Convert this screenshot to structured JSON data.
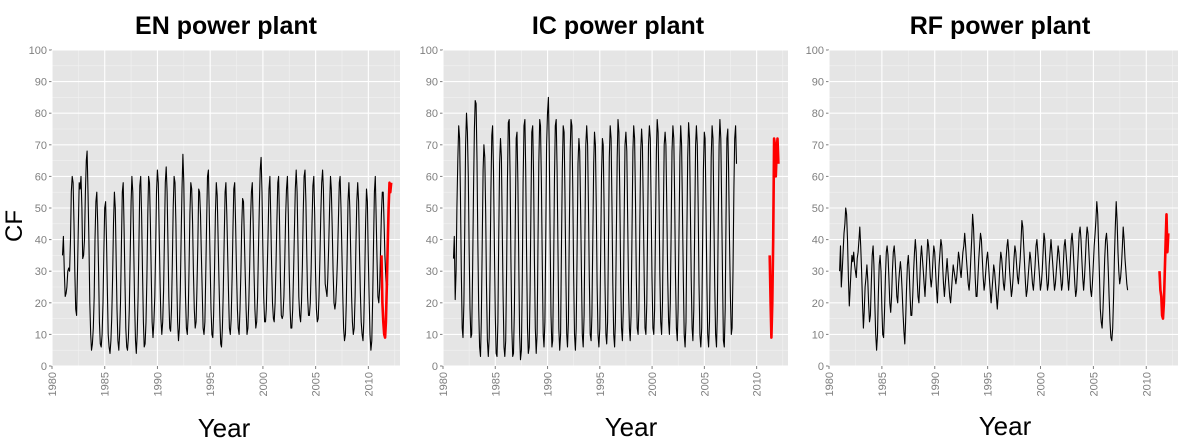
{
  "figure": {
    "ylabel": "CF",
    "xlabel": "Year",
    "colors": {
      "historical": "#000000",
      "recent": "#ff0000",
      "panel": "#e5e5e5",
      "grid": "#ffffff"
    }
  },
  "chart_data": [
    {
      "type": "line",
      "title": "EN power plant",
      "xlabel": "Year",
      "ylabel": "CF",
      "xlim": [
        1980,
        2013
      ],
      "ylim": [
        0,
        100
      ],
      "xticks": [
        "1980",
        "1985",
        "1990",
        "1995",
        "2000",
        "2005",
        "2010"
      ],
      "yticks": [
        "0",
        "10",
        "20",
        "30",
        "40",
        "50",
        "60",
        "70",
        "80",
        "90",
        "100"
      ],
      "grid": true,
      "series": [
        {
          "color": "#000000",
          "x_start": 1981.0,
          "x_step": 0.0833,
          "values": [
            35,
            41,
            30,
            22,
            23,
            25,
            30,
            31,
            30,
            40,
            55,
            60,
            58,
            45,
            30,
            18,
            16,
            30,
            45,
            58,
            56,
            60,
            50,
            34,
            35,
            40,
            55,
            65,
            68,
            55,
            40,
            20,
            10,
            5,
            7,
            12,
            22,
            40,
            52,
            55,
            45,
            30,
            14,
            7,
            6,
            10,
            20,
            35,
            50,
            52,
            40,
            25,
            10,
            6,
            4,
            8,
            15,
            28,
            45,
            55,
            50,
            35,
            18,
            8,
            5,
            10,
            20,
            38,
            55,
            58,
            45,
            28,
            12,
            6,
            5,
            9,
            18,
            35,
            52,
            60,
            55,
            38,
            20,
            8,
            4,
            10,
            22,
            40,
            57,
            60,
            48,
            30,
            14,
            6,
            7,
            14,
            28,
            48,
            60,
            58,
            45,
            28,
            14,
            9,
            14,
            22,
            38,
            55,
            62,
            58,
            42,
            26,
            15,
            10,
            14,
            24,
            40,
            58,
            63,
            55,
            38,
            22,
            12,
            11,
            18,
            32,
            50,
            60,
            58,
            45,
            28,
            14,
            8,
            12,
            24,
            40,
            56,
            67,
            58,
            40,
            22,
            12,
            10,
            16,
            30,
            48,
            58,
            56,
            45,
            30,
            18,
            12,
            14,
            24,
            38,
            56,
            55,
            48,
            36,
            24,
            12,
            10,
            14,
            28,
            45,
            60,
            62,
            50,
            33,
            18,
            10,
            9,
            16,
            30,
            48,
            58,
            54,
            42,
            28,
            16,
            7,
            6,
            12,
            24,
            40,
            55,
            58,
            48,
            35,
            22,
            12,
            10,
            15,
            28,
            44,
            56,
            58,
            45,
            30,
            18,
            12,
            10,
            18,
            30,
            44,
            53,
            52,
            40,
            28,
            18,
            10,
            12,
            20,
            32,
            46,
            55,
            58,
            45,
            30,
            18,
            12,
            14,
            22,
            36,
            50,
            62,
            66,
            55,
            38,
            22,
            14,
            14,
            18,
            30,
            42,
            56,
            60,
            48,
            32,
            20,
            15,
            14,
            20,
            32,
            46,
            58,
            60,
            46,
            28,
            16,
            15,
            16,
            22,
            34,
            48,
            56,
            60,
            48,
            30,
            18,
            12,
            12,
            18,
            30,
            44,
            56,
            62,
            55,
            38,
            22,
            16,
            14,
            20,
            32,
            48,
            60,
            62,
            52,
            35,
            22,
            16,
            16,
            20,
            30,
            45,
            57,
            60,
            48,
            30,
            18,
            14,
            15,
            22,
            34,
            48,
            58,
            62,
            56,
            40,
            26,
            24,
            22,
            28,
            38,
            50,
            60,
            56,
            44,
            30,
            20,
            18,
            20,
            26,
            34,
            46,
            58,
            60,
            50,
            36,
            22,
            12,
            8,
            10,
            20,
            36,
            52,
            58,
            50,
            36,
            22,
            14,
            10,
            12,
            22,
            38,
            52,
            58,
            52,
            36,
            24,
            14,
            10,
            8,
            14,
            28,
            45,
            56,
            52,
            36,
            22,
            10,
            5,
            8,
            20,
            38,
            55,
            60,
            48,
            34,
            22,
            20,
            25,
            36,
            48,
            55,
            55,
            45,
            35,
            28,
            22,
            26
          ]
        },
        {
          "color": "#ff0000",
          "x_start": 2011.25,
          "x_step": 0.0833,
          "values": [
            35,
            20,
            14,
            10,
            9,
            14,
            25,
            38,
            50,
            58,
            55,
            58
          ]
        }
      ]
    },
    {
      "type": "line",
      "title": "IC power plant",
      "xlabel": "Year",
      "ylabel": "",
      "xlim": [
        1980,
        2013
      ],
      "ylim": [
        0,
        100
      ],
      "xticks": [
        "1980",
        "1985",
        "1990",
        "1995",
        "2000",
        "2005",
        "2010"
      ],
      "yticks": [
        "0",
        "10",
        "20",
        "30",
        "40",
        "50",
        "60",
        "70",
        "80",
        "90",
        "100"
      ],
      "grid": true,
      "series": [
        {
          "color": "#000000",
          "x_start": 1981.0,
          "x_step": 0.0833,
          "values": [
            34,
            41,
            21,
            30,
            50,
            65,
            76,
            72,
            55,
            30,
            12,
            9,
            20,
            45,
            70,
            80,
            74,
            60,
            38,
            18,
            9,
            10,
            30,
            55,
            75,
            84,
            83,
            65,
            40,
            18,
            6,
            3,
            14,
            38,
            62,
            70,
            66,
            48,
            25,
            8,
            3,
            9,
            28,
            55,
            73,
            76,
            62,
            38,
            16,
            4,
            3,
            14,
            40,
            64,
            72,
            66,
            45,
            22,
            6,
            3,
            8,
            30,
            58,
            77,
            78,
            60,
            34,
            12,
            3,
            4,
            18,
            46,
            72,
            74,
            58,
            32,
            10,
            2,
            5,
            28,
            58,
            76,
            78,
            62,
            35,
            12,
            4,
            6,
            24,
            52,
            74,
            76,
            60,
            34,
            12,
            4,
            10,
            36,
            64,
            78,
            76,
            58,
            32,
            10,
            6,
            14,
            42,
            70,
            80,
            85,
            70,
            42,
            16,
            6,
            8,
            30,
            60,
            76,
            78,
            62,
            36,
            12,
            5,
            10,
            36,
            62,
            76,
            74,
            56,
            30,
            10,
            6,
            14,
            42,
            68,
            78,
            76,
            56,
            30,
            10,
            5,
            12,
            36,
            64,
            72,
            68,
            50,
            28,
            10,
            6,
            16,
            44,
            70,
            76,
            70,
            52,
            28,
            10,
            8,
            16,
            40,
            64,
            74,
            70,
            50,
            26,
            10,
            6,
            12,
            34,
            60,
            72,
            70,
            50,
            26,
            10,
            7,
            14,
            40,
            66,
            76,
            72,
            50,
            26,
            10,
            6,
            14,
            40,
            66,
            78,
            74,
            54,
            28,
            12,
            8,
            18,
            44,
            70,
            74,
            68,
            48,
            26,
            12,
            8,
            16,
            42,
            68,
            76,
            72,
            52,
            28,
            12,
            10,
            18,
            44,
            68,
            75,
            70,
            50,
            28,
            12,
            10,
            20,
            46,
            70,
            76,
            72,
            52,
            28,
            12,
            10,
            18,
            44,
            68,
            78,
            74,
            54,
            30,
            14,
            10,
            20,
            46,
            70,
            74,
            70,
            50,
            28,
            14,
            10,
            20,
            44,
            68,
            76,
            72,
            52,
            28,
            12,
            8,
            18,
            42,
            66,
            76,
            70,
            48,
            26,
            10,
            6,
            14,
            40,
            66,
            77,
            72,
            52,
            28,
            12,
            8,
            18,
            44,
            70,
            76,
            70,
            50,
            26,
            10,
            6,
            12,
            36,
            62,
            74,
            72,
            50,
            26,
            10,
            6,
            14,
            40,
            66,
            76,
            72,
            50,
            26,
            10,
            6,
            16,
            44,
            70,
            78,
            72,
            50,
            26,
            8,
            6,
            18,
            46,
            72,
            75,
            62,
            40,
            22,
            10,
            12,
            30,
            56,
            72,
            76,
            64
          ]
        },
        {
          "color": "#ff0000",
          "x_start": 2011.25,
          "x_step": 0.0833,
          "values": [
            35,
            20,
            9,
            20,
            40,
            72,
            70,
            60,
            68,
            72,
            64
          ]
        }
      ]
    },
    {
      "type": "line",
      "title": "RF power plant",
      "xlabel": "Year",
      "ylabel": "",
      "xlim": [
        1980,
        2013
      ],
      "ylim": [
        0,
        100
      ],
      "xticks": [
        "1980",
        "1985",
        "1990",
        "1995",
        "2000",
        "2005",
        "2010"
      ],
      "yticks": [
        "0",
        "10",
        "20",
        "30",
        "40",
        "50",
        "60",
        "70",
        "80",
        "90",
        "100"
      ],
      "grid": true,
      "series": [
        {
          "color": "#000000",
          "x_start": 1981.0,
          "x_step": 0.0833,
          "values": [
            30,
            38,
            25,
            30,
            36,
            42,
            45,
            50,
            48,
            40,
            28,
            19,
            24,
            30,
            35,
            33,
            36,
            32,
            30,
            28,
            34,
            36,
            40,
            44,
            38,
            30,
            20,
            12,
            17,
            25,
            28,
            32,
            27,
            20,
            14,
            16,
            26,
            35,
            38,
            32,
            20,
            10,
            5,
            10,
            22,
            32,
            35,
            30,
            18,
            10,
            9,
            17,
            28,
            36,
            38,
            35,
            28,
            20,
            17,
            22,
            30,
            36,
            38,
            34,
            28,
            22,
            20,
            26,
            30,
            33,
            30,
            24,
            17,
            11,
            7,
            14,
            24,
            32,
            35,
            30,
            22,
            16,
            16,
            22,
            30,
            36,
            40,
            36,
            28,
            22,
            20,
            26,
            34,
            38,
            34,
            30,
            26,
            22,
            28,
            34,
            40,
            38,
            34,
            28,
            25,
            28,
            34,
            38,
            36,
            30,
            24,
            20,
            26,
            32,
            36,
            40,
            38,
            32,
            26,
            22,
            26,
            30,
            34,
            30,
            26,
            22,
            20,
            24,
            28,
            32,
            30,
            28,
            26,
            28,
            32,
            36,
            34,
            30,
            28,
            32,
            36,
            38,
            42,
            38,
            34,
            30,
            26,
            24,
            28,
            34,
            40,
            48,
            44,
            36,
            28,
            22,
            22,
            28,
            34,
            38,
            42,
            40,
            34,
            28,
            24,
            26,
            30,
            34,
            36,
            32,
            28,
            24,
            20,
            24,
            28,
            32,
            30,
            26,
            22,
            18,
            22,
            26,
            32,
            36,
            34,
            30,
            26,
            24,
            28,
            34,
            38,
            40,
            36,
            30,
            26,
            22,
            24,
            28,
            34,
            38,
            36,
            32,
            28,
            26,
            30,
            34,
            40,
            46,
            44,
            38,
            32,
            26,
            22,
            24,
            28,
            32,
            36,
            34,
            30,
            26,
            24,
            28,
            32,
            38,
            40,
            36,
            32,
            28,
            24,
            26,
            30,
            36,
            42,
            40,
            34,
            28,
            24,
            26,
            32,
            36,
            40,
            36,
            32,
            28,
            24,
            26,
            30,
            34,
            38,
            36,
            32,
            28,
            24,
            26,
            32,
            38,
            40,
            36,
            32,
            28,
            24,
            28,
            34,
            40,
            42,
            38,
            32,
            26,
            22,
            24,
            30,
            36,
            42,
            44,
            40,
            34,
            28,
            24,
            28,
            34,
            40,
            44,
            42,
            36,
            30,
            24,
            22,
            26,
            32,
            38,
            42,
            46,
            52,
            48,
            38,
            28,
            18,
            14,
            12,
            18,
            26,
            34,
            40,
            42,
            38,
            30,
            22,
            14,
            9,
            8,
            12,
            22,
            34,
            44,
            52,
            46,
            36,
            30,
            26,
            28,
            32,
            38,
            44,
            40,
            34,
            30,
            26,
            24
          ]
        },
        {
          "color": "#ff0000",
          "x_start": 2011.25,
          "x_step": 0.0833,
          "values": [
            30,
            24,
            22,
            16,
            15,
            20,
            30,
            40,
            48,
            36,
            42
          ]
        }
      ]
    }
  ]
}
